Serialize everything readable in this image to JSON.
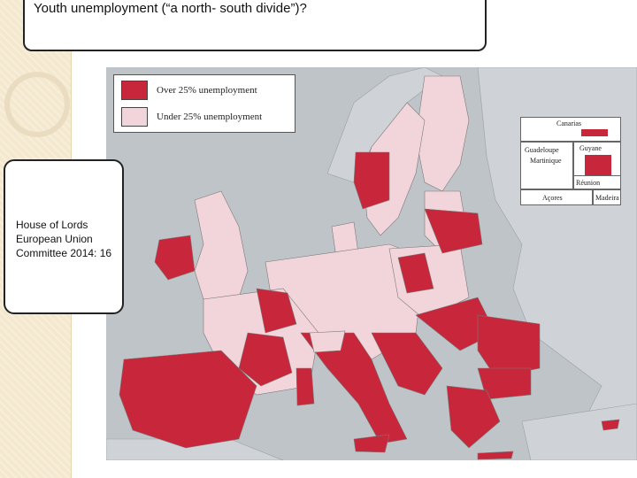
{
  "title": "Youth unemployment (“a north- south divide”)?",
  "citation": {
    "line1": "House of Lords",
    "line2": "European Union",
    "line3": "Committee 2014: 16"
  },
  "legend": {
    "over": {
      "label": "Over 25% unemployment",
      "color": "#c8263a"
    },
    "under": {
      "label": "Under 25% unemployment",
      "color": "#f2d5da"
    }
  },
  "insets": {
    "canarias": "Canarias",
    "guadeloupe": "Guadeloupe",
    "martinique": "Martinique",
    "guyane": "Guyane",
    "reunion": "Réunion",
    "acores": "Açores",
    "madeira": "Madeira"
  },
  "colors": {
    "over": "#c8263a",
    "under": "#f2d5da",
    "non_eu": "#c8cdd2",
    "sea": "#b9bfc5",
    "border": "#7a7a7a"
  }
}
